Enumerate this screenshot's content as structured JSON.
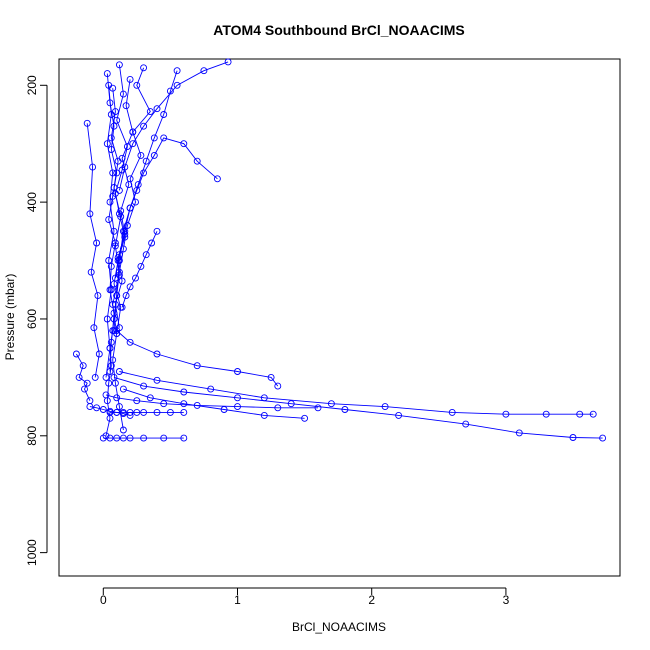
{
  "chart_data": {
    "type": "line",
    "title": "ATOM4 Southbound BrCl_NOAACIMS",
    "xlabel": "BrCl_NOAACIMS",
    "ylabel": "Pressure (mbar)",
    "xlim": [
      -0.33,
      3.85
    ],
    "ylim": [
      1040,
      155
    ],
    "y_reversed": true,
    "x_ticks": [
      0,
      1,
      2,
      3
    ],
    "y_ticks": [
      200,
      400,
      600,
      800,
      1000
    ],
    "series_color": "#0000ff",
    "marker": "open-circle",
    "series": [
      {
        "x": [
          0.03,
          0.05,
          0.08,
          0.06,
          0.1,
          0.07,
          0.04,
          0.09,
          0.06,
          0.05,
          0.08,
          0.07,
          0.05,
          0.06,
          0.04,
          0.03,
          0.05,
          0.02
        ],
        "y": [
          180,
          230,
          270,
          310,
          350,
          390,
          430,
          470,
          510,
          550,
          590,
          620,
          650,
          680,
          710,
          740,
          770,
          800
        ]
      },
      {
        "x": [
          0.12,
          0.15,
          0.1,
          0.18,
          0.14,
          0.09,
          0.12,
          0.16,
          0.11,
          0.08,
          0.13,
          0.1,
          0.07,
          0.09,
          0.12,
          0.15
        ],
        "y": [
          165,
          215,
          260,
          305,
          345,
          385,
          420,
          460,
          500,
          540,
          580,
          625,
          670,
          710,
          750,
          790
        ]
      },
      {
        "x": [
          0.3,
          0.25,
          0.35,
          0.22,
          0.28,
          0.2,
          0.24,
          0.18,
          0.15,
          0.12,
          0.1,
          0.08,
          0.06,
          0.05
        ],
        "y": [
          170,
          200,
          245,
          280,
          320,
          360,
          400,
          440,
          480,
          520,
          560,
          600,
          640,
          690
        ]
      },
      {
        "x": [
          0.85,
          0.7,
          0.6,
          0.45,
          0.38,
          0.3,
          0.25,
          0.2,
          0.15,
          0.12,
          0.1,
          0.08
        ],
        "y": [
          360,
          330,
          300,
          290,
          320,
          350,
          380,
          410,
          450,
          500,
          560,
          620
        ]
      },
      {
        "x": [
          0.93,
          0.75,
          0.55,
          0.4,
          0.3,
          0.22,
          0.16,
          0.12
        ],
        "y": [
          160,
          175,
          200,
          240,
          270,
          300,
          340,
          380
        ]
      },
      {
        "x": [
          0.04,
          0.06,
          0.03,
          0.07,
          0.05,
          0.08,
          0.04,
          0.06,
          0.03,
          0.05,
          0.02
        ],
        "y": [
          200,
          250,
          300,
          350,
          400,
          450,
          500,
          550,
          600,
          650,
          700
        ]
      },
      {
        "x": [
          -0.12,
          -0.08,
          -0.1,
          -0.05,
          -0.09,
          -0.04,
          -0.07,
          -0.03,
          -0.06
        ],
        "y": [
          265,
          340,
          420,
          470,
          520,
          560,
          615,
          660,
          700
        ]
      },
      {
        "x": [
          0.2,
          0.17,
          0.22,
          0.14,
          0.19,
          0.13,
          0.16,
          0.11,
          0.14,
          0.09,
          0.12
        ],
        "y": [
          190,
          235,
          280,
          325,
          370,
          415,
          455,
          495,
          535,
          575,
          615
        ]
      },
      {
        "x": [
          0.1,
          0.2,
          0.4,
          0.7,
          1.0,
          1.25,
          1.3
        ],
        "y": [
          620,
          640,
          660,
          680,
          690,
          700,
          715
        ]
      },
      {
        "x": [
          0.08,
          0.3,
          0.6,
          1.0,
          1.4,
          1.8,
          2.2,
          2.7,
          3.1,
          3.5,
          3.72
        ],
        "y": [
          700,
          715,
          725,
          735,
          745,
          755,
          765,
          780,
          795,
          803,
          804
        ]
      },
      {
        "x": [
          0.12,
          0.4,
          0.8,
          1.2,
          1.7,
          2.1,
          2.6,
          3.0,
          3.3,
          3.55,
          3.65
        ],
        "y": [
          690,
          705,
          720,
          735,
          745,
          750,
          760,
          763,
          763,
          763,
          763
        ]
      },
      {
        "x": [
          0.15,
          0.35,
          0.6,
          0.9,
          1.2,
          1.5
        ],
        "y": [
          720,
          735,
          745,
          755,
          765,
          770
        ]
      },
      {
        "x": [
          0.05,
          0.1,
          0.15,
          0.2,
          0.25,
          0.3,
          0.4,
          0.5,
          0.6
        ],
        "y": [
          760,
          760,
          760,
          760,
          760,
          760,
          760,
          760,
          760
        ]
      },
      {
        "x": [
          0.0,
          0.05,
          0.1,
          0.15,
          0.2,
          0.3,
          0.45,
          0.6
        ],
        "y": [
          804,
          804,
          804,
          804,
          804,
          804,
          804,
          804
        ]
      },
      {
        "x": [
          -0.1,
          -0.05,
          0.0,
          0.05,
          0.1,
          0.15,
          0.2
        ],
        "y": [
          750,
          752,
          755,
          758,
          760,
          762,
          765
        ]
      },
      {
        "x": [
          0.02,
          0.1,
          0.25,
          0.45,
          0.7,
          1.0,
          1.3,
          1.6
        ],
        "y": [
          730,
          735,
          740,
          745,
          748,
          750,
          752,
          752
        ]
      },
      {
        "x": [
          -0.2,
          -0.15,
          -0.18,
          -0.12,
          -0.14,
          -0.1
        ],
        "y": [
          660,
          680,
          700,
          710,
          720,
          740
        ]
      },
      {
        "x": [
          0.07,
          0.09,
          0.06,
          0.11,
          0.08,
          0.13,
          0.09,
          0.12,
          0.07,
          0.1
        ],
        "y": [
          205,
          245,
          290,
          330,
          375,
          425,
          475,
          525,
          575,
          625
        ]
      },
      {
        "x": [
          0.55,
          0.5,
          0.45,
          0.38,
          0.32,
          0.26,
          0.2,
          0.16,
          0.12,
          0.09
        ],
        "y": [
          175,
          210,
          250,
          290,
          330,
          370,
          410,
          450,
          490,
          530
        ]
      },
      {
        "x": [
          0.4,
          0.36,
          0.32,
          0.28,
          0.24,
          0.2,
          0.17,
          0.14
        ],
        "y": [
          450,
          470,
          490,
          510,
          530,
          545,
          560,
          580
        ]
      }
    ]
  }
}
